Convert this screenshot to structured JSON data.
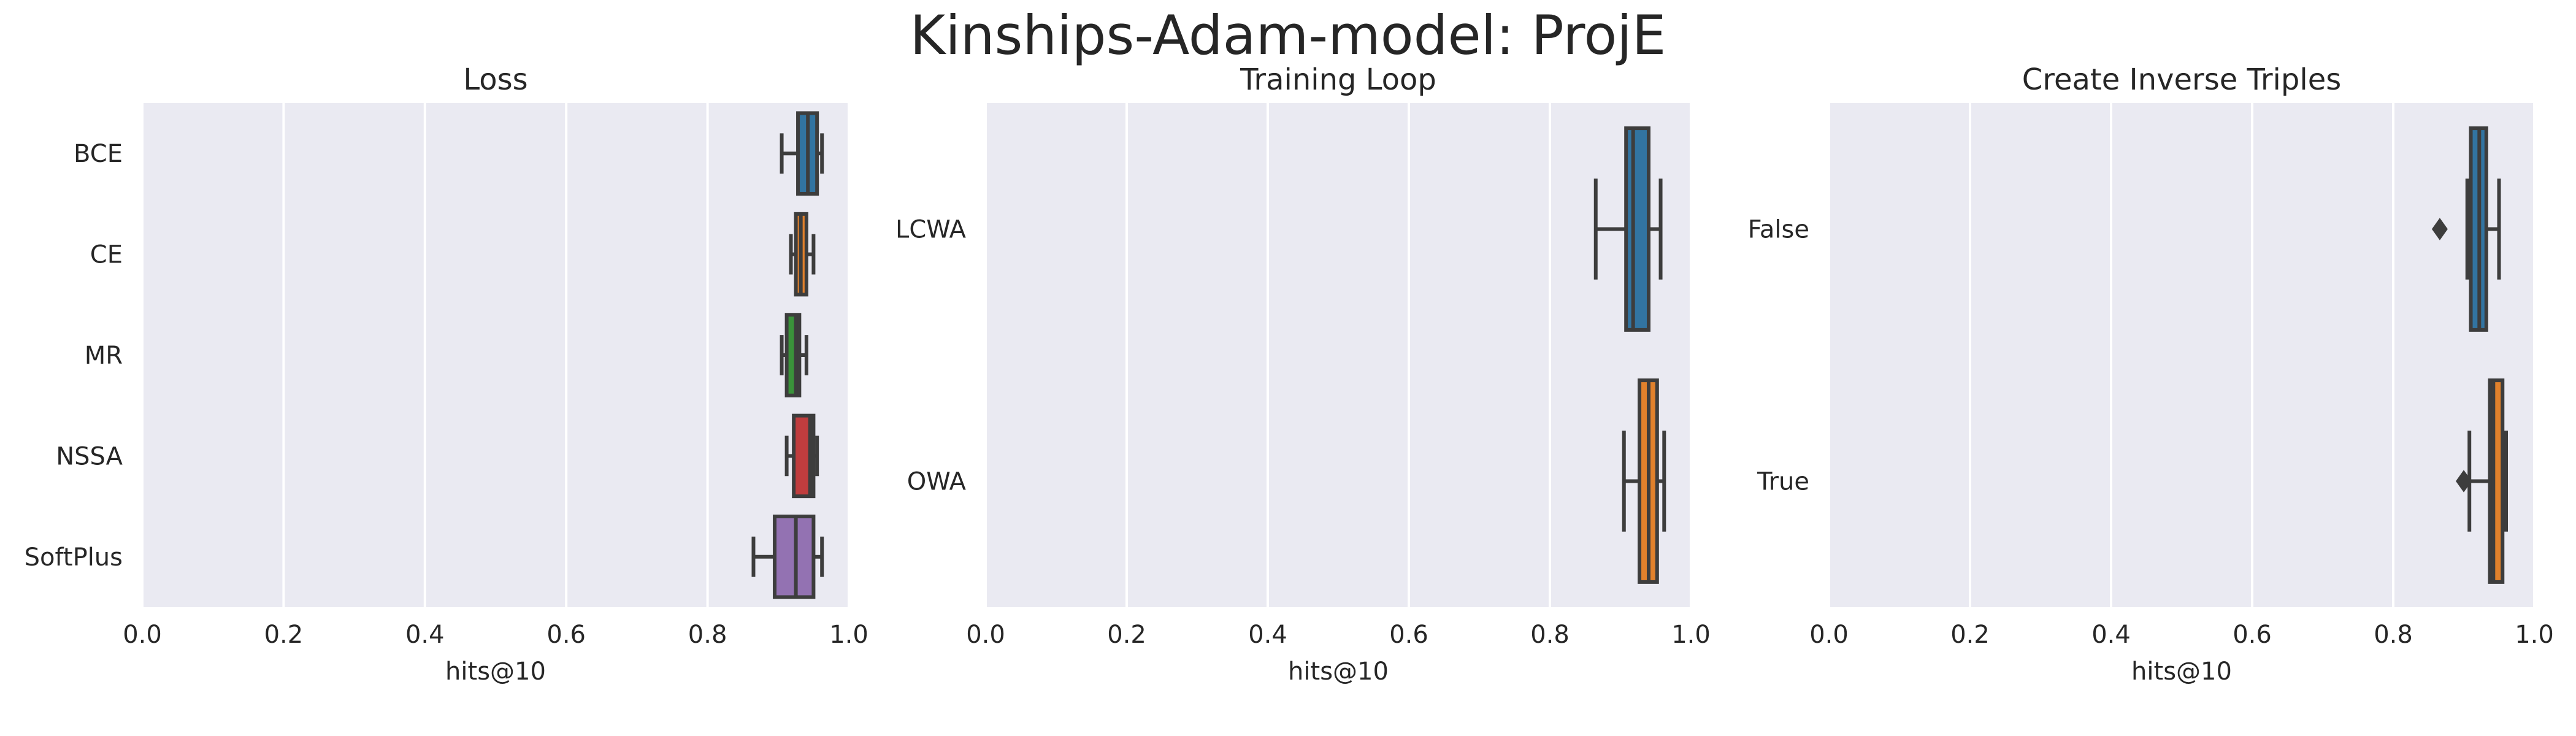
{
  "figure": {
    "title": "Kinships-Adam-model: ProjE"
  },
  "chart_data": [
    {
      "type": "box",
      "orientation": "horizontal",
      "title": "Loss",
      "xlabel": "hits@10",
      "ylabel": "",
      "xlim": [
        0,
        1
      ],
      "xticks": [
        "0.0",
        "0.2",
        "0.4",
        "0.6",
        "0.8",
        "1.0"
      ],
      "grid": true,
      "categories": [
        "BCE",
        "CE",
        "MR",
        "NSSA",
        "SoftPlus"
      ],
      "boxes": [
        {
          "label": "BCE",
          "color": "#3274a1",
          "whislo": 0.905,
          "q1": 0.928,
          "med": 0.942,
          "q3": 0.955,
          "whishi": 0.962,
          "fliers": []
        },
        {
          "label": "CE",
          "color": "#e1812c",
          "whislo": 0.918,
          "q1": 0.925,
          "med": 0.932,
          "q3": 0.94,
          "whishi": 0.95,
          "fliers": []
        },
        {
          "label": "MR",
          "color": "#3a923a",
          "whislo": 0.905,
          "q1": 0.912,
          "med": 0.925,
          "q3": 0.93,
          "whishi": 0.94,
          "fliers": []
        },
        {
          "label": "NSSA",
          "color": "#c03d3e",
          "whislo": 0.912,
          "q1": 0.922,
          "med": 0.945,
          "q3": 0.95,
          "whishi": 0.955,
          "fliers": []
        },
        {
          "label": "SoftPlus",
          "color": "#9372b2",
          "whislo": 0.865,
          "q1": 0.895,
          "med": 0.925,
          "q3": 0.95,
          "whishi": 0.962,
          "fliers": []
        }
      ]
    },
    {
      "type": "box",
      "orientation": "horizontal",
      "title": "Training Loop",
      "xlabel": "hits@10",
      "ylabel": "",
      "xlim": [
        0,
        1
      ],
      "xticks": [
        "0.0",
        "0.2",
        "0.4",
        "0.6",
        "0.8",
        "1.0"
      ],
      "grid": true,
      "categories": [
        "LCWA",
        "OWA"
      ],
      "boxes": [
        {
          "label": "LCWA",
          "color": "#3274a1",
          "whislo": 0.865,
          "q1": 0.908,
          "med": 0.918,
          "q3": 0.94,
          "whishi": 0.957,
          "fliers": []
        },
        {
          "label": "OWA",
          "color": "#e1812c",
          "whislo": 0.905,
          "q1": 0.927,
          "med": 0.94,
          "q3": 0.952,
          "whishi": 0.962,
          "fliers": []
        }
      ]
    },
    {
      "type": "box",
      "orientation": "horizontal",
      "title": "Create Inverse Triples",
      "xlabel": "hits@10",
      "ylabel": "",
      "xlim": [
        0,
        1
      ],
      "xticks": [
        "0.0",
        "0.2",
        "0.4",
        "0.6",
        "0.8",
        "1.0"
      ],
      "grid": true,
      "categories": [
        "False",
        "True"
      ],
      "boxes": [
        {
          "label": "False",
          "color": "#3274a1",
          "whislo": 0.905,
          "q1": 0.91,
          "med": 0.922,
          "q3": 0.932,
          "whishi": 0.95,
          "fliers": [
            0.866
          ]
        },
        {
          "label": "True",
          "color": "#e1812c",
          "whislo": 0.908,
          "q1": 0.937,
          "med": 0.942,
          "q3": 0.955,
          "whishi": 0.96,
          "fliers": [
            0.9
          ]
        }
      ]
    }
  ]
}
